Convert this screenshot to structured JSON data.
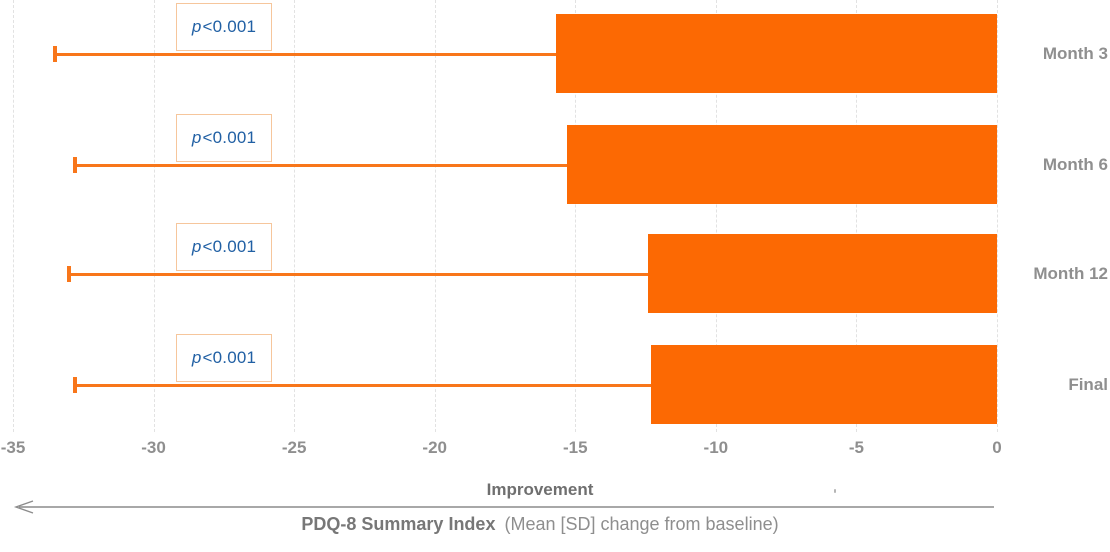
{
  "chart_data": {
    "type": "bar",
    "orientation": "horizontal",
    "categories": [
      "Month 3",
      "Month 6",
      "Month 12",
      "Final"
    ],
    "series": [
      {
        "name": "Mean [SD] change from baseline",
        "values": [
          -15.7,
          -15.3,
          -12.4,
          -12.3
        ],
        "sd": [
          17.8,
          17.5,
          20.6,
          20.5
        ],
        "error_low": [
          -33.5,
          -32.8,
          -33.0,
          -32.8
        ]
      }
    ],
    "p_values": [
      {
        "var": "p",
        "rest": "<0.001"
      },
      {
        "var": "p",
        "rest": "<0.001"
      },
      {
        "var": "p",
        "rest": "<0.001"
      },
      {
        "var": "p",
        "rest": "<0.001"
      }
    ],
    "xlim": [
      -35,
      0
    ],
    "x_ticks": [
      -35,
      -30,
      -25,
      -20,
      -15,
      -10,
      -5,
      0
    ],
    "x_tick_labels": [
      "-35",
      "-30",
      "-25",
      "-20",
      "-15",
      "-10",
      "-5",
      "0"
    ],
    "direction_label": "Improvement",
    "xlabel_title": "PDQ-8 Summary Index",
    "xlabel_subtitle": "(Mean [SD] change from baseline)",
    "grid": "vertical-dashed",
    "legend": "none",
    "colors": {
      "bar": "#fc6903",
      "error_bar": "#f8761a",
      "p_box_border": "#f6c69c",
      "p_text": "#2160a4",
      "gridline": "#e2e2e2",
      "tick_text": "#8f8f8f",
      "category_text": "#8f8f8f",
      "direction_text": "#6f6f6f",
      "axis_title_text": "#777777",
      "arrow": "#8c8c8c"
    }
  }
}
